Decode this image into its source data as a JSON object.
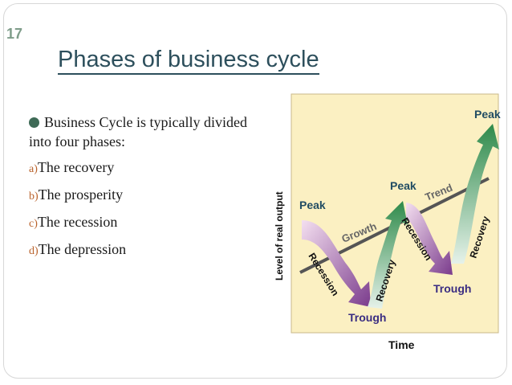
{
  "slide": {
    "number": "17",
    "title": "Phases of business cycle"
  },
  "bullets": {
    "lead": "Business Cycle is typically divided into four phases:",
    "items": [
      {
        "marker": "a)",
        "text": "The recovery"
      },
      {
        "marker": "b)",
        "text": "The prosperity"
      },
      {
        "marker": "c)",
        "text": "The recession"
      },
      {
        "marker": "d)",
        "text": "The depression"
      }
    ]
  },
  "diagram": {
    "y_axis_label": "Level of real output",
    "x_axis_label": "Time",
    "labels": {
      "peak1": "Peak",
      "peak2": "Peak",
      "peak3": "Peak",
      "trough1": "Trough",
      "trough2": "Trough",
      "recession1": "Recession",
      "recession2": "Recession",
      "recovery1": "Recovery",
      "recovery2": "Recovery",
      "growth": "Growth",
      "trend": "Trend"
    },
    "colors": {
      "background": "#fbf0c2",
      "peak_text": "#214c63",
      "trough_text": "#3a2d82",
      "recession_arrow": "#b07bbd",
      "recovery_arrow": "#3e9b58",
      "trend_line": "#555555"
    }
  }
}
